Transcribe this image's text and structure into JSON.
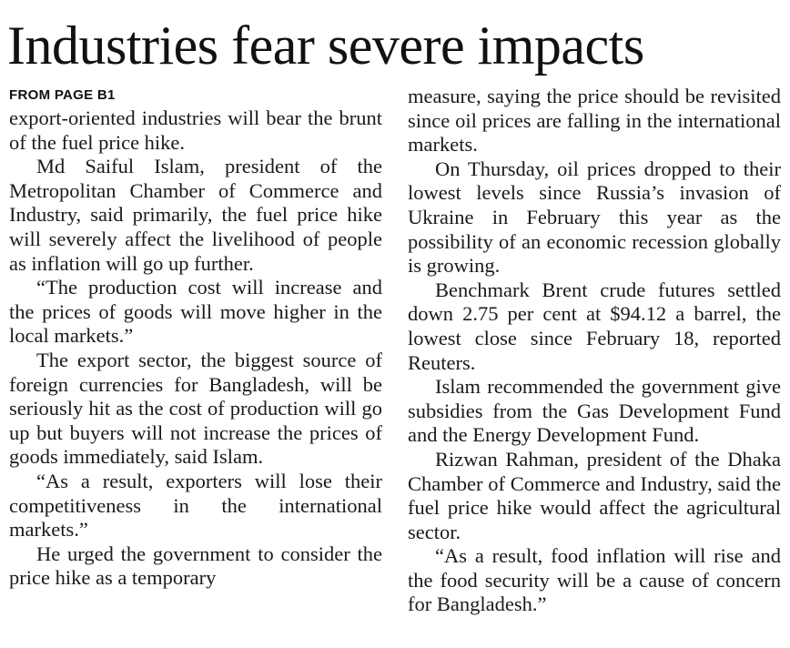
{
  "article": {
    "headline": "Industries fear severe impacts",
    "kicker": "FROM PAGE B1",
    "left_column": [
      "export-oriented industries will bear the brunt of the fuel price hike.",
      "Md Saiful Islam, president of the Metropolitan Chamber of Commerce and Industry, said primarily, the fuel price hike will severely affect the livelihood of people as inflation will go up further.",
      "“The production cost will increase and the prices of goods will move higher in the local markets.”",
      "The export sector, the biggest source of foreign currencies for Bangladesh, will be seriously hit as the cost of production will go up but buyers will not increase the prices of goods immediately, said Islam.",
      "“As a result, exporters will lose their competitiveness in the international markets.”",
      "He urged the government to consider the price hike as a temporary"
    ],
    "right_column": [
      "measure, saying the price should be revisited since oil prices are falling in the international markets.",
      "On Thursday, oil prices dropped to their lowest levels since Russia’s invasion of Ukraine in February this year as the possibility of an economic recession globally is growing.",
      "Benchmark Brent crude futures settled down 2.75 per cent at $94.12 a barrel, the lowest close since February 18, reported Reuters.",
      "Islam recommended the government give subsidies from the Gas Development Fund and the Energy Development Fund.",
      "Rizwan Rahman, president of the Dhaka Chamber of Commerce and Industry, said the fuel price hike would affect the agricultural sector.",
      "“As a result, food inflation will rise and the food security will be a cause of concern for Bangladesh.”"
    ]
  }
}
